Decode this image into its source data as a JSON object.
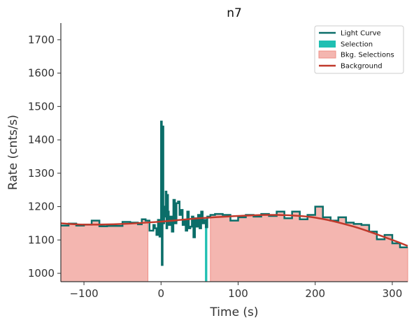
{
  "chart_data": {
    "type": "line",
    "title": "n7",
    "xlabel": "Time (s)",
    "ylabel": "Rate (cnts/s)",
    "xlim": [
      -130,
      320
    ],
    "ylim": [
      975,
      1750
    ],
    "xticks": [
      -100,
      0,
      100,
      200,
      300
    ],
    "xtick_labels": [
      "−100",
      "0",
      "100",
      "200",
      "300"
    ],
    "yticks": [
      1000,
      1100,
      1200,
      1300,
      1400,
      1500,
      1600,
      1700
    ],
    "ytick_labels": [
      "1000",
      "1100",
      "1200",
      "1300",
      "1400",
      "1500",
      "1600",
      "1700"
    ],
    "legend_position": "top-right",
    "legend": [
      "Light Curve",
      "Selection",
      "Bkg. Selections",
      "Background"
    ],
    "colors": {
      "light_curve": "#0b6e69",
      "selection": "#1fbfb2",
      "bkg_fill": "#f4b6b0",
      "bkg_edge": "#ee8f86",
      "background": "#c0392b"
    },
    "selection_interval": [
      57,
      60
    ],
    "bkg_intervals": [
      [
        -130,
        -17
      ],
      [
        64,
        320
      ]
    ],
    "light_curve": {
      "x": [
        -130,
        -120,
        -110,
        -100,
        -90,
        -80,
        -70,
        -60,
        -50,
        -40,
        -30,
        -25,
        -20,
        -15,
        -10,
        -8,
        -6,
        -4,
        -2,
        0,
        1,
        2,
        3,
        4,
        5,
        6,
        7,
        8,
        9,
        10,
        12,
        14,
        16,
        18,
        20,
        22,
        24,
        26,
        28,
        30,
        32,
        34,
        36,
        38,
        40,
        42,
        44,
        46,
        48,
        50,
        52,
        54,
        56,
        58,
        60,
        64,
        70,
        80,
        90,
        100,
        110,
        120,
        130,
        140,
        150,
        160,
        170,
        180,
        190,
        200,
        210,
        220,
        230,
        240,
        250,
        260,
        270,
        280,
        290,
        300,
        310,
        320
      ],
      "y": [
        1143,
        1149,
        1143,
        1146,
        1158,
        1141,
        1142,
        1142,
        1154,
        1152,
        1147,
        1162,
        1158,
        1128,
        1145,
        1135,
        1115,
        1160,
        1110,
        1455,
        1025,
        1440,
        1150,
        1200,
        1170,
        1245,
        1135,
        1235,
        1185,
        1145,
        1170,
        1125,
        1220,
        1150,
        1210,
        1215,
        1175,
        1190,
        1145,
        1160,
        1128,
        1185,
        1135,
        1140,
        1170,
        1108,
        1165,
        1140,
        1175,
        1135,
        1185,
        1150,
        1160,
        1138,
        1170,
        1175,
        1178,
        1175,
        1158,
        1168,
        1175,
        1170,
        1178,
        1172,
        1185,
        1165,
        1185,
        1162,
        1175,
        1200,
        1168,
        1158,
        1168,
        1152,
        1148,
        1145,
        1125,
        1102,
        1115,
        1090,
        1078,
        1078
      ]
    },
    "background_model": {
      "x": [
        -130,
        -100,
        -50,
        0,
        50,
        100,
        150,
        200,
        250,
        300,
        320
      ],
      "y": [
        1150,
        1146,
        1148,
        1155,
        1165,
        1172,
        1175,
        1167,
        1140,
        1100,
        1082
      ]
    }
  }
}
